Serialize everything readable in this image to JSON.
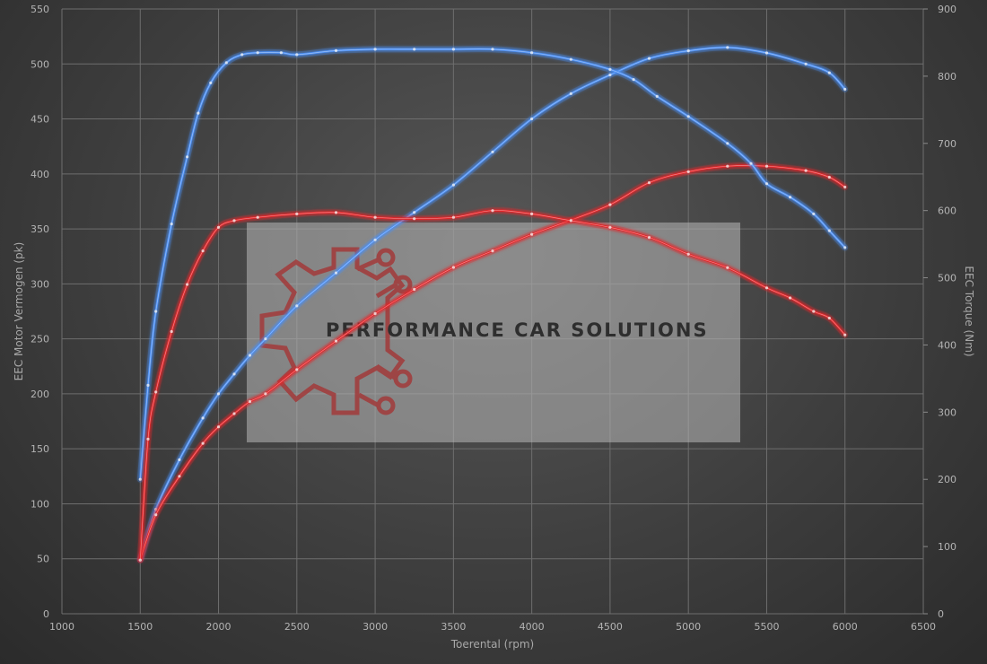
{
  "chart_data": {
    "type": "line",
    "xlabel": "Toerental (rpm)",
    "ylabel_left": "EEC Motor Vermogen (pk)",
    "ylabel_right": "EEC Torque (Nm)",
    "xlim": [
      1000,
      6500
    ],
    "ylim_left": [
      0,
      550
    ],
    "ylim_right": [
      0,
      900
    ],
    "x_ticks": [
      1000,
      1500,
      2000,
      2500,
      3000,
      3500,
      4000,
      4500,
      5000,
      5500,
      6000,
      6500
    ],
    "y_left_ticks": [
      0,
      50,
      100,
      150,
      200,
      250,
      300,
      350,
      400,
      450,
      500,
      550
    ],
    "y_right_ticks": [
      0,
      100,
      200,
      300,
      400,
      500,
      600,
      700,
      800,
      900
    ],
    "grid": true,
    "series": [
      {
        "axis": "left",
        "color": "#4b8ef2",
        "x": [
          1500,
          1600,
          1750,
          1900,
          2000,
          2100,
          2200,
          2300,
          2500,
          2750,
          3000,
          3250,
          3500,
          3750,
          4000,
          4250,
          4500,
          4750,
          5000,
          5250,
          5500,
          5750,
          5900,
          6000
        ],
        "y": [
          49,
          95,
          140,
          178,
          200,
          218,
          235,
          250,
          280,
          310,
          340,
          365,
          390,
          420,
          450,
          473,
          490,
          505,
          512,
          515,
          510,
          500,
          492,
          477
        ]
      },
      {
        "axis": "left",
        "color": "#e2272b",
        "x": [
          1500,
          1600,
          1750,
          1900,
          2000,
          2100,
          2200,
          2300,
          2500,
          2750,
          3000,
          3250,
          3500,
          3750,
          4000,
          4250,
          4500,
          4750,
          5000,
          5250,
          5500,
          5750,
          5900,
          6000
        ],
        "y": [
          49,
          90,
          125,
          155,
          170,
          182,
          193,
          200,
          222,
          248,
          273,
          295,
          315,
          330,
          345,
          358,
          372,
          392,
          402,
          407,
          407,
          403,
          397,
          388
        ]
      },
      {
        "axis": "right",
        "color": "#4b8ef2",
        "x": [
          1500,
          1550,
          1600,
          1700,
          1800,
          1870,
          1950,
          2050,
          2150,
          2250,
          2400,
          2500,
          2750,
          3000,
          3250,
          3500,
          3750,
          4000,
          4250,
          4500,
          4650,
          4800,
          5000,
          5250,
          5400,
          5500,
          5650,
          5800,
          5900,
          6000
        ],
        "y": [
          200,
          340,
          450,
          580,
          680,
          745,
          790,
          820,
          832,
          835,
          835,
          832,
          838,
          840,
          840,
          840,
          840,
          835,
          825,
          810,
          795,
          770,
          740,
          700,
          670,
          640,
          620,
          595,
          570,
          545
        ]
      },
      {
        "axis": "right",
        "color": "#e2272b",
        "x": [
          1500,
          1550,
          1600,
          1700,
          1800,
          1900,
          2000,
          2100,
          2250,
          2500,
          2750,
          3000,
          3250,
          3500,
          3750,
          4000,
          4250,
          4500,
          4750,
          5000,
          5250,
          5500,
          5650,
          5800,
          5900,
          6000
        ],
        "y": [
          80,
          260,
          330,
          420,
          490,
          540,
          575,
          585,
          590,
          595,
          597,
          590,
          588,
          590,
          600,
          595,
          585,
          575,
          560,
          535,
          515,
          485,
          470,
          450,
          440,
          415
        ]
      }
    ]
  },
  "watermark": {
    "text": "PERFORMANCE CAR SOLUTIONS"
  }
}
